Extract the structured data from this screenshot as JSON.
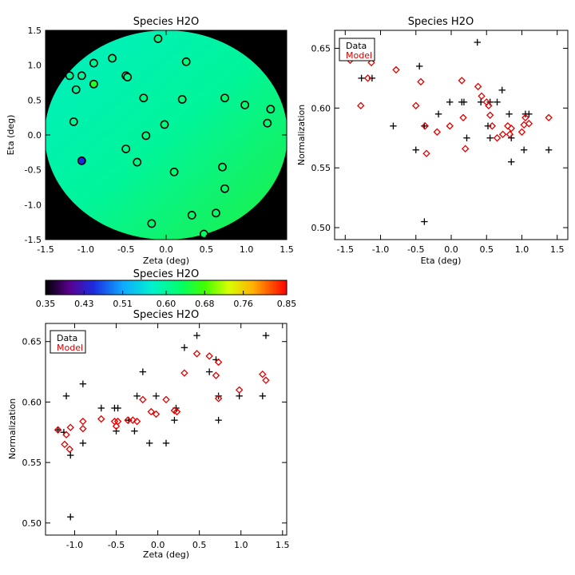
{
  "figure": {
    "panels": [
      {
        "id": "map",
        "title": "Species H2O",
        "xlabel": "Zeta (deg)",
        "ylabel": "Eta (deg)",
        "xlim": [
          -1.5,
          1.5
        ],
        "ylim": [
          -1.5,
          1.5
        ],
        "xticks": [
          "-1.5",
          "-1.0",
          "-0.5",
          "0.0",
          "0.5",
          "1.0",
          "1.5"
        ],
        "yticks": [
          "-1.5",
          "-1.0",
          "-0.5",
          "0.0",
          "0.5",
          "1.0",
          "1.5"
        ]
      },
      {
        "id": "norm_vs_eta",
        "title": "Species H2O",
        "xlabel": "Eta (deg)",
        "ylabel": "Normalization",
        "xlim": [
          -1.65,
          1.65
        ],
        "ylim": [
          0.49,
          0.665
        ],
        "xticks": [
          "-1.5",
          "-1.0",
          "-0.5",
          "0.0",
          "0.5",
          "1.0",
          "1.5"
        ],
        "yticks": [
          "0.50",
          "0.55",
          "0.60",
          "0.65"
        ],
        "legend": [
          "Data",
          "Model"
        ]
      },
      {
        "id": "norm_vs_zeta",
        "title": "Species H2O",
        "xlabel": "Zeta (deg)",
        "ylabel": "Normalization",
        "xlim": [
          -1.35,
          1.55
        ],
        "ylim": [
          0.49,
          0.665
        ],
        "xticks": [
          "-1.0",
          "-0.5",
          "0.0",
          "0.5",
          "1.0",
          "1.5"
        ],
        "yticks": [
          "0.50",
          "0.55",
          "0.60",
          "0.65"
        ],
        "legend": [
          "Data",
          "Model"
        ]
      }
    ],
    "colorbar": {
      "title": "Species H2O",
      "range": [
        0.35,
        0.85
      ],
      "ticks": [
        "0.35",
        "0.43",
        "0.51",
        "0.60",
        "0.68",
        "0.76",
        "0.85"
      ]
    },
    "colors": {
      "data": "#000000",
      "model": "#e00000",
      "map_background": "#000000"
    }
  },
  "chart_data": [
    {
      "type": "scatter",
      "title": "Species H2O",
      "xlabel": "Zeta (deg)",
      "ylabel": "Eta (deg)",
      "xlim": [
        -1.5,
        1.5
      ],
      "ylim": [
        -1.5,
        1.5
      ],
      "field_range": [
        0.58,
        0.66
      ],
      "colormap": "rainbow",
      "points": [
        {
          "x": -0.1,
          "y": 1.38,
          "v": 0.615
        },
        {
          "x": -1.05,
          "y": 0.85,
          "v": 0.6
        },
        {
          "x": -0.9,
          "y": 1.03,
          "v": 0.605
        },
        {
          "x": -0.67,
          "y": 1.1,
          "v": 0.61
        },
        {
          "x": -1.2,
          "y": 0.85,
          "v": 0.6
        },
        {
          "x": -1.12,
          "y": 0.65,
          "v": 0.6
        },
        {
          "x": -0.9,
          "y": 0.73,
          "v": 0.66
        },
        {
          "x": -0.5,
          "y": 0.85,
          "v": 0.61
        },
        {
          "x": -0.48,
          "y": 0.83,
          "v": 0.61
        },
        {
          "x": 0.25,
          "y": 1.05,
          "v": 0.62
        },
        {
          "x": -0.28,
          "y": 0.53,
          "v": 0.615
        },
        {
          "x": 0.2,
          "y": 0.51,
          "v": 0.62
        },
        {
          "x": 0.73,
          "y": 0.53,
          "v": 0.625
        },
        {
          "x": 0.98,
          "y": 0.43,
          "v": 0.625
        },
        {
          "x": 1.3,
          "y": 0.37,
          "v": 0.625
        },
        {
          "x": 1.26,
          "y": 0.17,
          "v": 0.625
        },
        {
          "x": -1.15,
          "y": 0.19,
          "v": 0.605
        },
        {
          "x": -0.02,
          "y": 0.15,
          "v": 0.62
        },
        {
          "x": -0.25,
          "y": -0.01,
          "v": 0.615
        },
        {
          "x": -0.5,
          "y": -0.2,
          "v": 0.61
        },
        {
          "x": -0.36,
          "y": -0.39,
          "v": 0.61
        },
        {
          "x": -1.05,
          "y": -0.37,
          "v": 0.45
        },
        {
          "x": 0.1,
          "y": -0.53,
          "v": 0.625
        },
        {
          "x": 0.7,
          "y": -0.46,
          "v": 0.63
        },
        {
          "x": 0.73,
          "y": -0.77,
          "v": 0.63
        },
        {
          "x": -0.18,
          "y": -1.27,
          "v": 0.625
        },
        {
          "x": 0.32,
          "y": -1.15,
          "v": 0.63
        },
        {
          "x": 0.62,
          "y": -1.12,
          "v": 0.63
        },
        {
          "x": 0.47,
          "y": -1.42,
          "v": 0.635
        }
      ]
    },
    {
      "type": "scatter",
      "title": "Species H2O",
      "xlabel": "Eta (deg)",
      "ylabel": "Normalization",
      "xlim": [
        -1.65,
        1.65
      ],
      "ylim": [
        0.49,
        0.665
      ],
      "legend": "top-left",
      "series": [
        {
          "name": "Data",
          "marker": "plus",
          "points": [
            [
              -1.38,
              0.655
            ],
            [
              -1.27,
              0.625
            ],
            [
              -1.15,
              0.645
            ],
            [
              -1.12,
              0.625
            ],
            [
              -0.82,
              0.585
            ],
            [
              -0.45,
              0.635
            ],
            [
              -0.5,
              0.565
            ],
            [
              -0.38,
              0.585
            ],
            [
              -0.38,
              0.505
            ],
            [
              -0.18,
              0.595
            ],
            [
              -0.02,
              0.605
            ],
            [
              0.15,
              0.605
            ],
            [
              0.18,
              0.605
            ],
            [
              0.22,
              0.575
            ],
            [
              0.37,
              0.655
            ],
            [
              0.42,
              0.605
            ],
            [
              0.52,
              0.585
            ],
            [
              0.55,
              0.575
            ],
            [
              0.55,
              0.605
            ],
            [
              0.65,
              0.605
            ],
            [
              0.72,
              0.615
            ],
            [
              0.82,
              0.595
            ],
            [
              0.85,
              0.575
            ],
            [
              0.85,
              0.555
            ],
            [
              1.03,
              0.565
            ],
            [
              1.05,
              0.595
            ],
            [
              1.1,
              0.595
            ],
            [
              1.38,
              0.565
            ]
          ]
        },
        {
          "name": "Model",
          "marker": "diamond",
          "points": [
            [
              -1.43,
              0.64
            ],
            [
              -1.28,
              0.602
            ],
            [
              -1.18,
              0.625
            ],
            [
              -1.13,
              0.638
            ],
            [
              -0.78,
              0.632
            ],
            [
              -0.5,
              0.602
            ],
            [
              -0.43,
              0.622
            ],
            [
              -0.37,
              0.585
            ],
            [
              -0.35,
              0.562
            ],
            [
              -0.2,
              0.58
            ],
            [
              -0.02,
              0.585
            ],
            [
              0.15,
              0.623
            ],
            [
              0.17,
              0.592
            ],
            [
              0.2,
              0.566
            ],
            [
              0.38,
              0.618
            ],
            [
              0.43,
              0.61
            ],
            [
              0.5,
              0.605
            ],
            [
              0.53,
              0.602
            ],
            [
              0.55,
              0.594
            ],
            [
              0.58,
              0.585
            ],
            [
              0.65,
              0.575
            ],
            [
              0.73,
              0.578
            ],
            [
              0.8,
              0.585
            ],
            [
              0.83,
              0.578
            ],
            [
              0.85,
              0.583
            ],
            [
              1.0,
              0.58
            ],
            [
              1.03,
              0.586
            ],
            [
              1.05,
              0.592
            ],
            [
              1.1,
              0.587
            ],
            [
              1.38,
              0.592
            ]
          ]
        }
      ]
    },
    {
      "type": "scatter",
      "title": "Species H2O",
      "xlabel": "Zeta (deg)",
      "ylabel": "Normalization",
      "xlim": [
        -1.35,
        1.55
      ],
      "ylim": [
        0.49,
        0.665
      ],
      "legend": "top-left",
      "series": [
        {
          "name": "Data",
          "marker": "plus",
          "points": [
            [
              -1.2,
              0.577
            ],
            [
              -1.13,
              0.575
            ],
            [
              -1.1,
              0.605
            ],
            [
              -1.05,
              0.556
            ],
            [
              -1.05,
              0.505
            ],
            [
              -0.9,
              0.615
            ],
            [
              -0.9,
              0.566
            ],
            [
              -0.68,
              0.595
            ],
            [
              -0.52,
              0.595
            ],
            [
              -0.5,
              0.576
            ],
            [
              -0.48,
              0.595
            ],
            [
              -0.35,
              0.585
            ],
            [
              -0.28,
              0.576
            ],
            [
              -0.25,
              0.605
            ],
            [
              -0.18,
              0.625
            ],
            [
              -0.1,
              0.566
            ],
            [
              -0.02,
              0.605
            ],
            [
              0.1,
              0.566
            ],
            [
              0.2,
              0.585
            ],
            [
              0.22,
              0.595
            ],
            [
              0.32,
              0.645
            ],
            [
              0.47,
              0.655
            ],
            [
              0.62,
              0.625
            ],
            [
              0.7,
              0.635
            ],
            [
              0.73,
              0.605
            ],
            [
              0.73,
              0.585
            ],
            [
              0.98,
              0.605
            ],
            [
              1.26,
              0.605
            ],
            [
              1.3,
              0.655
            ]
          ]
        },
        {
          "name": "Model",
          "marker": "diamond",
          "points": [
            [
              -1.2,
              0.577
            ],
            [
              -1.12,
              0.565
            ],
            [
              -1.1,
              0.573
            ],
            [
              -1.06,
              0.561
            ],
            [
              -1.05,
              0.579
            ],
            [
              -0.9,
              0.584
            ],
            [
              -0.9,
              0.578
            ],
            [
              -0.68,
              0.586
            ],
            [
              -0.52,
              0.584
            ],
            [
              -0.5,
              0.58
            ],
            [
              -0.48,
              0.584
            ],
            [
              -0.36,
              0.585
            ],
            [
              -0.3,
              0.585
            ],
            [
              -0.25,
              0.584
            ],
            [
              -0.18,
              0.602
            ],
            [
              -0.08,
              0.592
            ],
            [
              -0.02,
              0.59
            ],
            [
              0.1,
              0.602
            ],
            [
              0.2,
              0.593
            ],
            [
              0.23,
              0.592
            ],
            [
              0.32,
              0.624
            ],
            [
              0.47,
              0.64
            ],
            [
              0.62,
              0.638
            ],
            [
              0.7,
              0.622
            ],
            [
              0.73,
              0.633
            ],
            [
              0.73,
              0.603
            ],
            [
              0.98,
              0.61
            ],
            [
              1.26,
              0.623
            ],
            [
              1.3,
              0.618
            ]
          ]
        }
      ]
    }
  ]
}
